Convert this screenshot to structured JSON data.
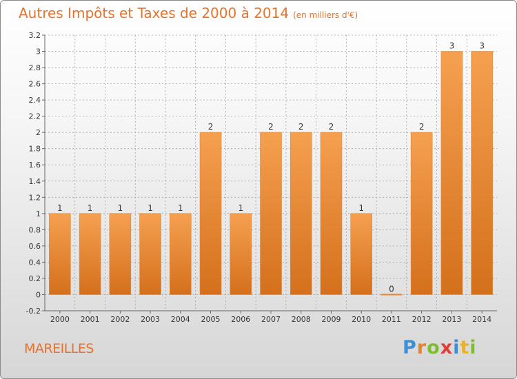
{
  "title": "Autres Impôts et Taxes de 2000 à 2014",
  "subtitle": "(en milliers d'€)",
  "commune": "MAREILLES",
  "brand": {
    "name": "Proxiti",
    "letters": [
      "P",
      "r",
      "o",
      "x",
      "i",
      "t",
      "i"
    ]
  },
  "colors": {
    "title": "#e8722a",
    "bar_light": "#f5a050",
    "bar_dark": "#d4701c",
    "grid": "#9a9a9a"
  },
  "chart_data": {
    "type": "bar",
    "title": "Autres Impôts et Taxes de 2000 à 2014",
    "subtitle": "(en milliers d'€)",
    "xlabel": "",
    "ylabel": "",
    "categories": [
      "2000",
      "2001",
      "2002",
      "2003",
      "2004",
      "2005",
      "2006",
      "2007",
      "2008",
      "2009",
      "2010",
      "2011",
      "2012",
      "2013",
      "2014"
    ],
    "values": [
      1,
      1,
      1,
      1,
      1,
      2,
      1,
      2,
      2,
      2,
      1,
      0,
      2,
      3,
      3
    ],
    "data_labels": [
      "1",
      "1",
      "1",
      "1",
      "1",
      "2",
      "1",
      "2",
      "2",
      "2",
      "1",
      "0",
      "2",
      "3",
      "3"
    ],
    "ylim": [
      -0.2,
      3.2
    ],
    "yticks": [
      -0.2,
      0,
      0.2,
      0.4,
      0.6,
      0.8,
      1,
      1.2,
      1.4,
      1.6,
      1.8,
      2,
      2.2,
      2.4,
      2.6,
      2.8,
      3,
      3.2
    ],
    "ytick_labels": [
      "-0.2",
      "0",
      "0.2",
      "0.4",
      "0.6",
      "0.8",
      "1",
      "1.2",
      "1.4",
      "1.6",
      "1.8",
      "2",
      "2.2",
      "2.4",
      "2.6",
      "2.8",
      "3",
      "3.2"
    ],
    "grid": true,
    "legend": false
  }
}
